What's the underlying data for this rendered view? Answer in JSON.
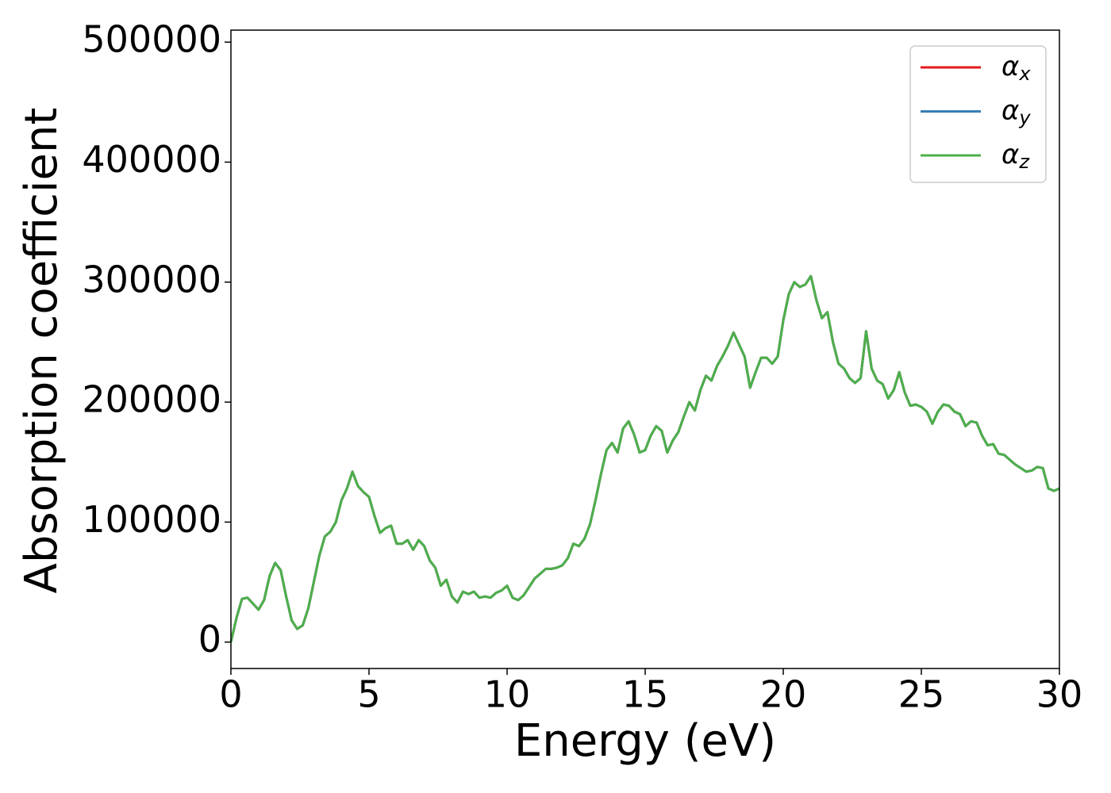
{
  "chart_data": {
    "type": "line",
    "xlabel": "Energy (eV)",
    "ylabel": "Absorption coefficient",
    "x": [
      0,
      0.2,
      0.4,
      0.6,
      0.8,
      1,
      1.2,
      1.4,
      1.6,
      1.8,
      2,
      2.2,
      2.4,
      2.6,
      2.8,
      3,
      3.2,
      3.4,
      3.6,
      3.8,
      4,
      4.2,
      4.4,
      4.6,
      4.8,
      5,
      5.2,
      5.4,
      5.6,
      5.8,
      6,
      6.2,
      6.4,
      6.6,
      6.8,
      7,
      7.2,
      7.4,
      7.6,
      7.8,
      8,
      8.2,
      8.4,
      8.6,
      8.8,
      9,
      9.2,
      9.4,
      9.6,
      9.8,
      10,
      10.2,
      10.4,
      10.6,
      10.8,
      11,
      11.2,
      11.4,
      11.6,
      11.8,
      12,
      12.2,
      12.4,
      12.6,
      12.8,
      13,
      13.2,
      13.4,
      13.6,
      13.8,
      14,
      14.2,
      14.4,
      14.6,
      14.8,
      15,
      15.2,
      15.4,
      15.6,
      15.8,
      16,
      16.2,
      16.4,
      16.6,
      16.8,
      17,
      17.2,
      17.4,
      17.6,
      17.8,
      18,
      18.2,
      18.4,
      18.6,
      18.8,
      19,
      19.2,
      19.4,
      19.6,
      19.8,
      20,
      20.2,
      20.4,
      20.6,
      20.8,
      21,
      21.2,
      21.4,
      21.6,
      21.8,
      22,
      22.2,
      22.4,
      22.6,
      22.8,
      23,
      23.2,
      23.4,
      23.6,
      23.8,
      24,
      24.2,
      24.4,
      24.6,
      24.8,
      25,
      25.2,
      25.4,
      25.6,
      25.8,
      26,
      26.2,
      26.4,
      26.6,
      26.8,
      27,
      27.2,
      27.4,
      27.6,
      27.8,
      28,
      28.2,
      28.4,
      28.6,
      28.8,
      29,
      29.2,
      29.4,
      29.6,
      29.8,
      30
    ],
    "series": [
      {
        "name": "αx",
        "color": "#e41a1c",
        "values": [
          0,
          20000,
          36000,
          37000,
          32000,
          27000,
          35000,
          55000,
          66000,
          60000,
          38000,
          18000,
          11000,
          14000,
          28000,
          50000,
          72000,
          88000,
          92000,
          100000,
          118000,
          128000,
          142000,
          130000,
          125000,
          121000,
          105000,
          91000,
          95000,
          97000,
          82000,
          82000,
          85000,
          77000,
          85000,
          80000,
          68000,
          62000,
          47000,
          52000,
          38000,
          33000,
          42000,
          40000,
          42000,
          37000,
          38000,
          37000,
          41000,
          43000,
          47000,
          37000,
          35000,
          39000,
          46000,
          53000,
          57000,
          61000,
          61000,
          62000,
          64000,
          70000,
          82000,
          80000,
          86000,
          98000,
          118000,
          140000,
          160000,
          166000,
          158000,
          178000,
          184000,
          173000,
          158000,
          160000,
          172000,
          180000,
          176000,
          158000,
          168000,
          175000,
          188000,
          200000,
          193000,
          210000,
          222000,
          218000,
          230000,
          238000,
          247000,
          258000,
          248000,
          238000,
          212000,
          225000,
          237000,
          237000,
          232000,
          238000,
          268000,
          290000,
          300000,
          296000,
          298000,
          305000,
          285000,
          270000,
          275000,
          250000,
          232000,
          228000,
          220000,
          216000,
          220000,
          259000,
          228000,
          218000,
          215000,
          203000,
          210000,
          225000,
          208000,
          197000,
          198000,
          196000,
          192000,
          182000,
          192000,
          198000,
          197000,
          192000,
          190000,
          180000,
          184000,
          183000,
          172000,
          164000,
          165000,
          157000,
          156000,
          152000,
          148000,
          145000,
          142000,
          143000,
          146000,
          145000,
          128000,
          126000,
          128000
        ]
      },
      {
        "name": "αy",
        "color": "#377eb8",
        "values": [
          0,
          20000,
          36000,
          37000,
          32000,
          27000,
          35000,
          55000,
          66000,
          60000,
          38000,
          18000,
          11000,
          14000,
          28000,
          50000,
          72000,
          88000,
          92000,
          100000,
          118000,
          128000,
          142000,
          130000,
          125000,
          121000,
          105000,
          91000,
          95000,
          97000,
          82000,
          82000,
          85000,
          77000,
          85000,
          80000,
          68000,
          62000,
          47000,
          52000,
          38000,
          33000,
          42000,
          40000,
          42000,
          37000,
          38000,
          37000,
          41000,
          43000,
          47000,
          37000,
          35000,
          39000,
          46000,
          53000,
          57000,
          61000,
          61000,
          62000,
          64000,
          70000,
          82000,
          80000,
          86000,
          98000,
          118000,
          140000,
          160000,
          166000,
          158000,
          178000,
          184000,
          173000,
          158000,
          160000,
          172000,
          180000,
          176000,
          158000,
          168000,
          175000,
          188000,
          200000,
          193000,
          210000,
          222000,
          218000,
          230000,
          238000,
          247000,
          258000,
          248000,
          238000,
          212000,
          225000,
          237000,
          237000,
          232000,
          238000,
          268000,
          290000,
          300000,
          296000,
          298000,
          305000,
          285000,
          270000,
          275000,
          250000,
          232000,
          228000,
          220000,
          216000,
          220000,
          259000,
          228000,
          218000,
          215000,
          203000,
          210000,
          225000,
          208000,
          197000,
          198000,
          196000,
          192000,
          182000,
          192000,
          198000,
          197000,
          192000,
          190000,
          180000,
          184000,
          183000,
          172000,
          164000,
          165000,
          157000,
          156000,
          152000,
          148000,
          145000,
          142000,
          143000,
          146000,
          145000,
          128000,
          126000,
          128000
        ]
      },
      {
        "name": "αz",
        "color": "#4daf4a",
        "values": [
          0,
          20000,
          36000,
          37000,
          32000,
          27000,
          35000,
          55000,
          66000,
          60000,
          38000,
          18000,
          11000,
          14000,
          28000,
          50000,
          72000,
          88000,
          92000,
          100000,
          118000,
          128000,
          142000,
          130000,
          125000,
          121000,
          105000,
          91000,
          95000,
          97000,
          82000,
          82000,
          85000,
          77000,
          85000,
          80000,
          68000,
          62000,
          47000,
          52000,
          38000,
          33000,
          42000,
          40000,
          42000,
          37000,
          38000,
          37000,
          41000,
          43000,
          47000,
          37000,
          35000,
          39000,
          46000,
          53000,
          57000,
          61000,
          61000,
          62000,
          64000,
          70000,
          82000,
          80000,
          86000,
          98000,
          118000,
          140000,
          160000,
          166000,
          158000,
          178000,
          184000,
          173000,
          158000,
          160000,
          172000,
          180000,
          176000,
          158000,
          168000,
          175000,
          188000,
          200000,
          193000,
          210000,
          222000,
          218000,
          230000,
          238000,
          247000,
          258000,
          248000,
          238000,
          212000,
          225000,
          237000,
          237000,
          232000,
          238000,
          268000,
          290000,
          300000,
          296000,
          298000,
          305000,
          285000,
          270000,
          275000,
          250000,
          232000,
          228000,
          220000,
          216000,
          220000,
          259000,
          228000,
          218000,
          215000,
          203000,
          210000,
          225000,
          208000,
          197000,
          198000,
          196000,
          192000,
          182000,
          192000,
          198000,
          197000,
          192000,
          190000,
          180000,
          184000,
          183000,
          172000,
          164000,
          165000,
          157000,
          156000,
          152000,
          148000,
          145000,
          142000,
          143000,
          146000,
          145000,
          128000,
          126000,
          128000
        ]
      }
    ],
    "xlim": [
      0,
      30
    ],
    "xticks": [
      0,
      5,
      10,
      15,
      20,
      25,
      30
    ],
    "ylim": [
      -22000,
      510000
    ],
    "yticks": [
      0,
      100000,
      200000,
      300000,
      400000,
      500000
    ],
    "grid": false,
    "legend": "upper right"
  }
}
